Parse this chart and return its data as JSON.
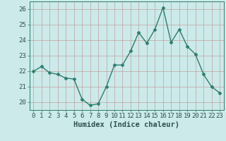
{
  "x": [
    0,
    1,
    2,
    3,
    4,
    5,
    6,
    7,
    8,
    9,
    10,
    11,
    12,
    13,
    14,
    15,
    16,
    17,
    18,
    19,
    20,
    21,
    22,
    23
  ],
  "y": [
    22.0,
    22.3,
    21.9,
    21.8,
    21.55,
    21.5,
    20.2,
    19.8,
    19.9,
    21.0,
    22.4,
    22.4,
    23.3,
    24.5,
    23.8,
    24.7,
    26.1,
    23.85,
    24.7,
    23.6,
    23.1,
    21.8,
    21.0,
    20.6
  ],
  "line_color": "#2e7d6e",
  "marker": "D",
  "marker_size": 2.5,
  "bg_color": "#cceaea",
  "grid_color": "#c0a0a0",
  "xlabel": "Humidex (Indice chaleur)",
  "xlim": [
    -0.5,
    23.5
  ],
  "ylim": [
    19.5,
    26.5
  ],
  "yticks": [
    20,
    21,
    22,
    23,
    24,
    25,
    26
  ],
  "xticks": [
    0,
    1,
    2,
    3,
    4,
    5,
    6,
    7,
    8,
    9,
    10,
    11,
    12,
    13,
    14,
    15,
    16,
    17,
    18,
    19,
    20,
    21,
    22,
    23
  ],
  "xlabel_fontsize": 7.5,
  "tick_fontsize": 6.5,
  "line_width": 1.0
}
